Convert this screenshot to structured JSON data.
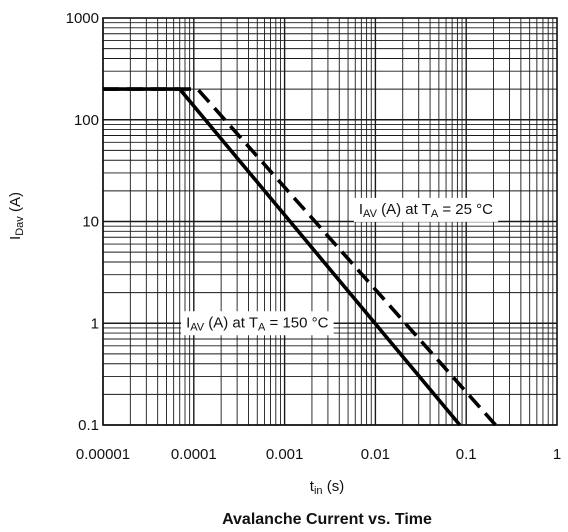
{
  "chart_data": {
    "type": "line",
    "title": "Avalanche Current vs. Time",
    "xlabel": {
      "main": "t",
      "sub": "in",
      "unit": "(s)"
    },
    "ylabel": {
      "main": "I",
      "sub": "Dav",
      "unit": "(A)"
    },
    "xscale": "log",
    "yscale": "log",
    "xlim": [
      1e-05,
      1
    ],
    "ylim": [
      0.1,
      1000
    ],
    "grid": true,
    "x_ticks": [
      1e-05,
      0.0001,
      0.001,
      0.01,
      0.1,
      1
    ],
    "x_tick_labels": [
      "0.00001",
      "0.0001",
      "0.001",
      "0.01",
      "0.1",
      "1"
    ],
    "y_ticks": [
      0.1,
      1,
      10,
      100,
      1000
    ],
    "y_tick_labels": [
      "0.1",
      "1",
      "10",
      "100",
      "1000"
    ],
    "series": [
      {
        "style": "solid",
        "points": [
          [
            1e-05,
            200
          ],
          [
            7e-05,
            200
          ],
          [
            0.085,
            0.1
          ]
        ]
      },
      {
        "style": "dashed",
        "points": [
          [
            1e-05,
            200
          ],
          [
            0.00011,
            200
          ],
          [
            0.21,
            0.1
          ]
        ]
      }
    ],
    "annotations": [
      {
        "main": "I",
        "sub": "AV",
        "mid": " (A) at T",
        "sub2": "A",
        "tail": " = 150 °C",
        "x": 0.0005,
        "y": 1,
        "series_index": 0
      },
      {
        "main": "I",
        "sub": "AV",
        "mid": " (A) at T",
        "sub2": "A",
        "tail": " = 25 °C",
        "x": 0.036,
        "y": 13,
        "series_index": 1
      }
    ]
  }
}
